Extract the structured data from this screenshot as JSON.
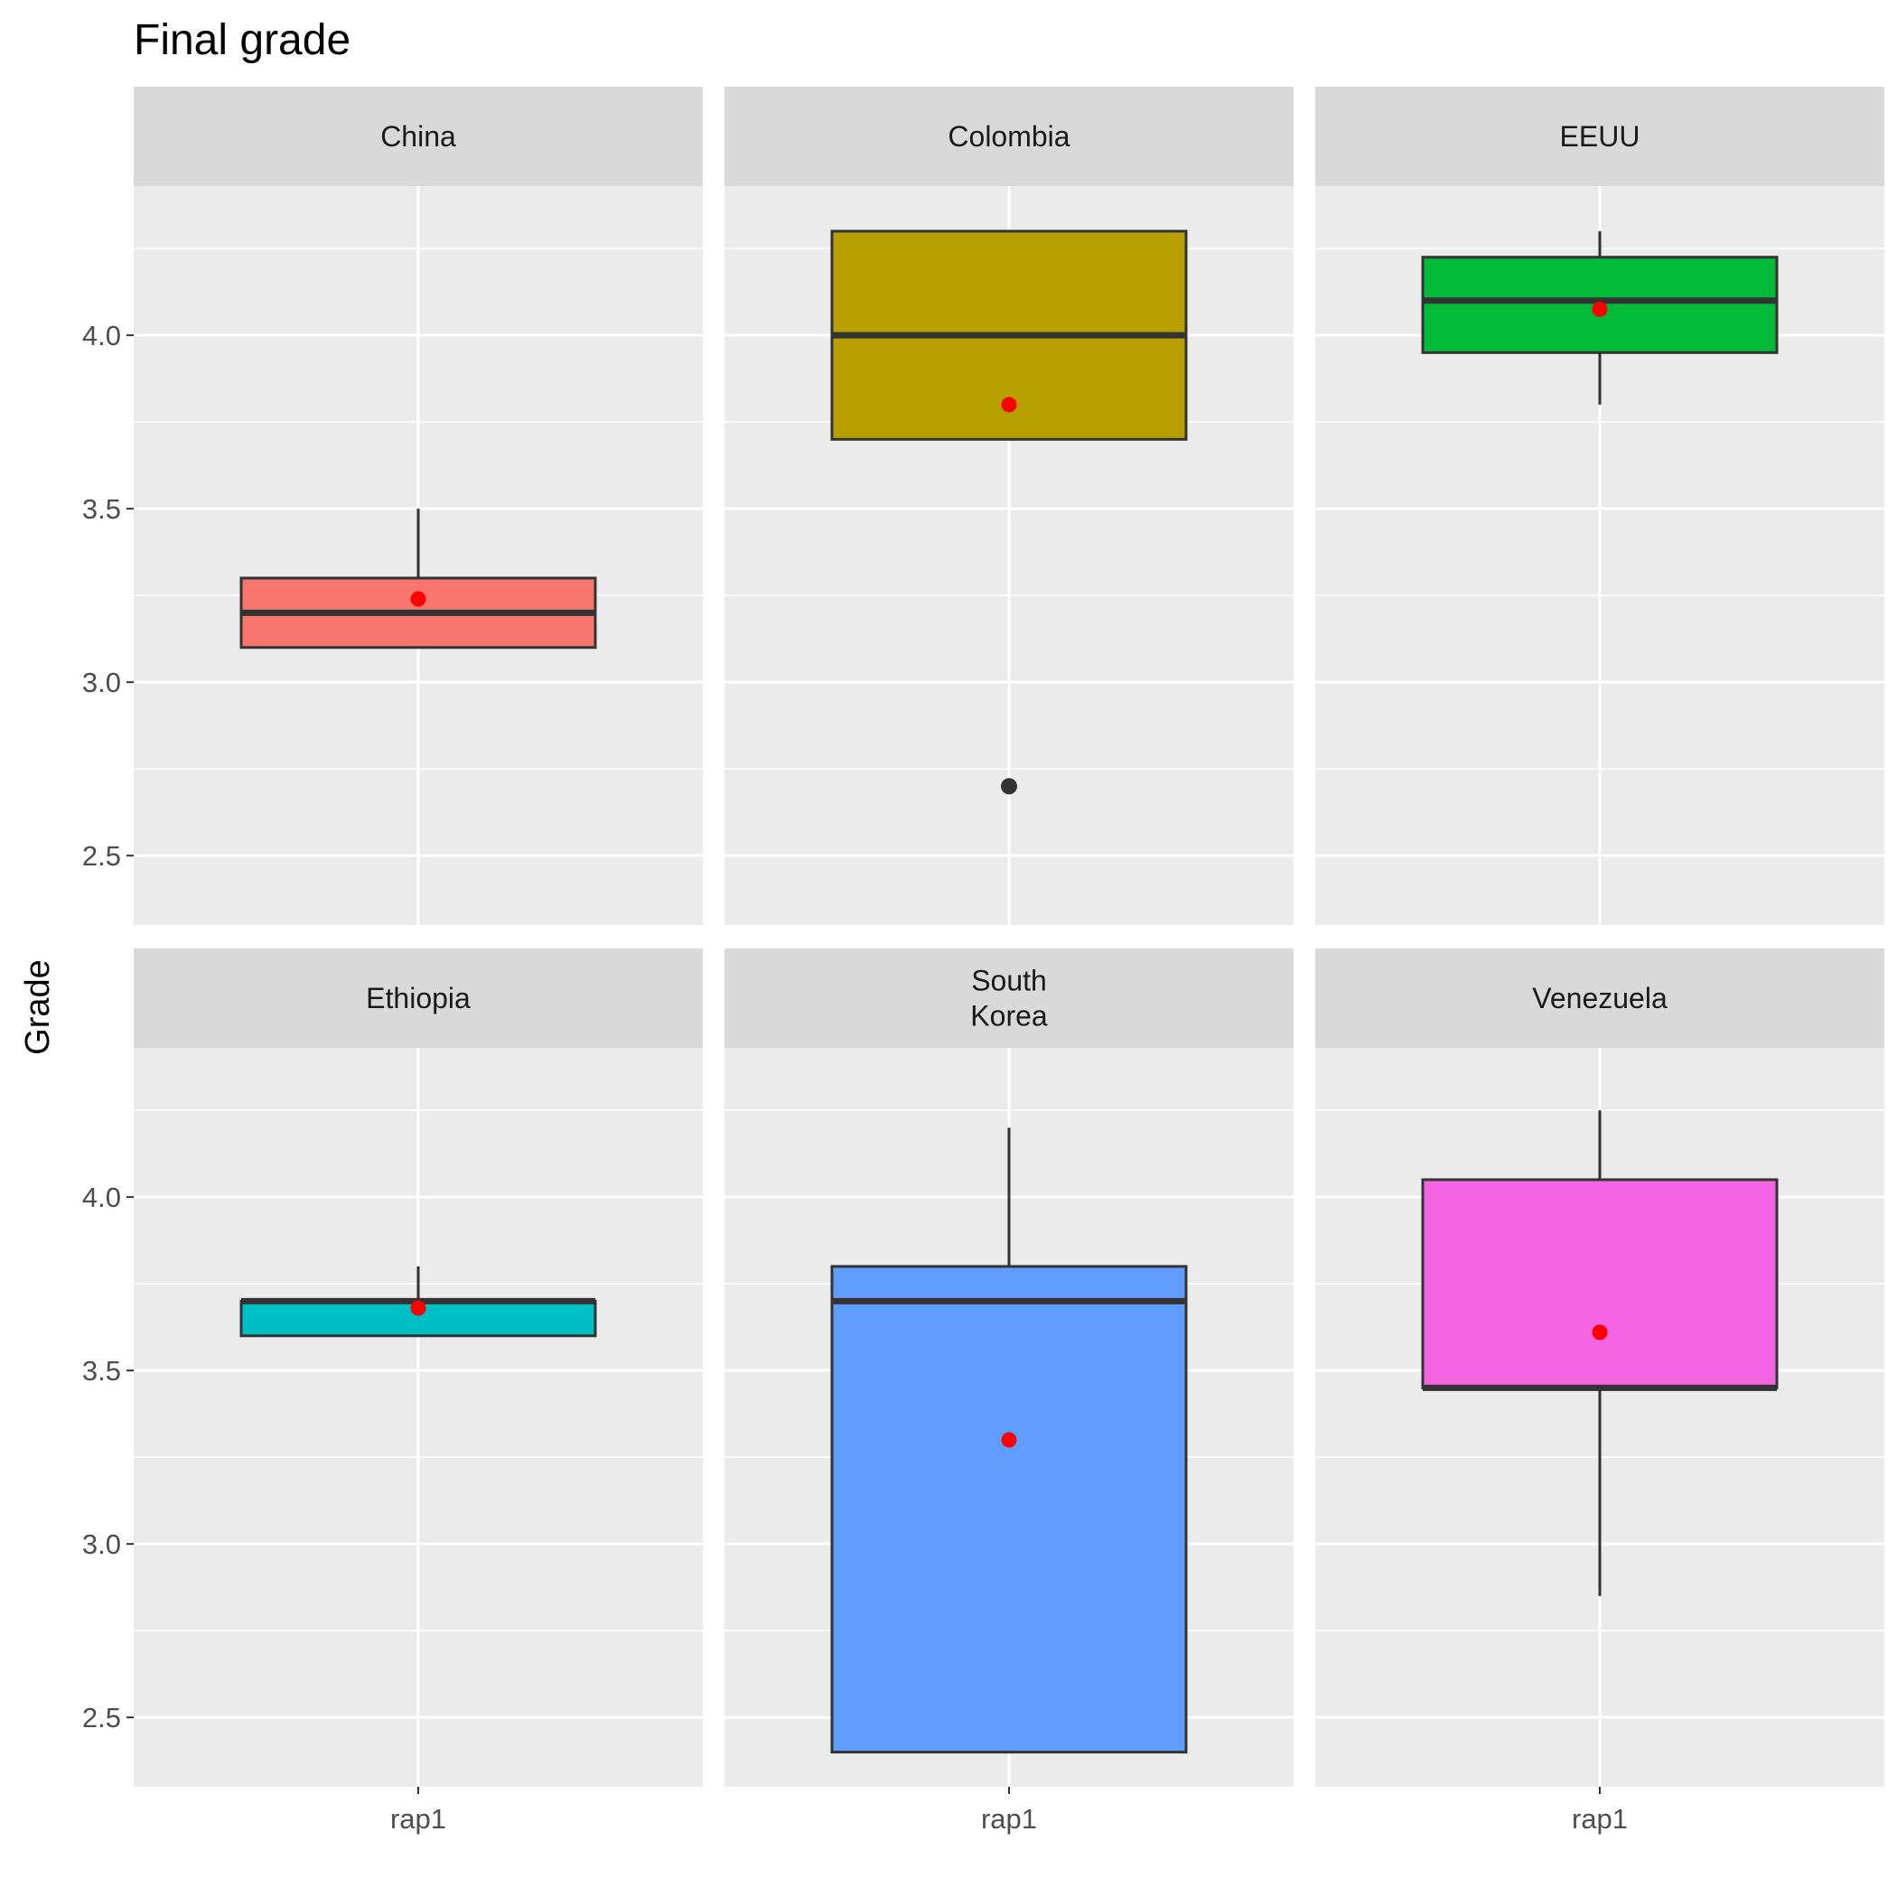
{
  "chart_data": {
    "type": "boxplot",
    "title": "Final grade",
    "ylabel": "Grade",
    "xlabel": "",
    "x_categories": [
      "rap1"
    ],
    "ylim": [
      2.3,
      4.43
    ],
    "y_ticks": [
      2.5,
      3.0,
      3.5,
      4.0
    ],
    "y_tick_labels": [
      "2.5",
      "3.0",
      "3.5",
      "4.0"
    ],
    "grid": true,
    "layout": {
      "rows": 2,
      "cols": 3
    },
    "mean_color": "#FF0000",
    "panels": [
      {
        "label_lines": [
          "China"
        ],
        "category": "rap1",
        "color": "#F8766D",
        "q1": 3.1,
        "median": 3.2,
        "q3": 3.3,
        "whisker_low": 3.1,
        "whisker_high": 3.5,
        "outliers": [],
        "mean": 3.24
      },
      {
        "label_lines": [
          "Colombia"
        ],
        "category": "rap1",
        "color": "#B79F00",
        "q1": 3.7,
        "median": 4.0,
        "q3": 4.3,
        "whisker_low": 3.7,
        "whisker_high": 4.3,
        "outliers": [
          2.7
        ],
        "mean": 3.8
      },
      {
        "label_lines": [
          "EEUU"
        ],
        "category": "rap1",
        "color": "#00BA38",
        "q1": 3.95,
        "median": 4.1,
        "q3": 4.225,
        "whisker_low": 3.8,
        "whisker_high": 4.3,
        "outliers": [],
        "mean": 4.075
      },
      {
        "label_lines": [
          "Ethiopia"
        ],
        "category": "rap1",
        "color": "#00BFC4",
        "q1": 3.6,
        "median": 3.7,
        "q3": 3.7,
        "whisker_low": 3.6,
        "whisker_high": 3.8,
        "outliers": [],
        "mean": 3.68
      },
      {
        "label_lines": [
          "South",
          "Korea"
        ],
        "category": "rap1",
        "color": "#619CFF",
        "q1": 2.4,
        "median": 3.7,
        "q3": 3.8,
        "whisker_low": 2.4,
        "whisker_high": 4.2,
        "outliers": [],
        "mean": 3.3
      },
      {
        "label_lines": [
          "Venezuela"
        ],
        "category": "rap1",
        "color": "#F564E3",
        "q1": 3.45,
        "median": 3.45,
        "q3": 4.05,
        "whisker_low": 2.85,
        "whisker_high": 4.25,
        "outliers": [],
        "mean": 3.61
      }
    ]
  }
}
